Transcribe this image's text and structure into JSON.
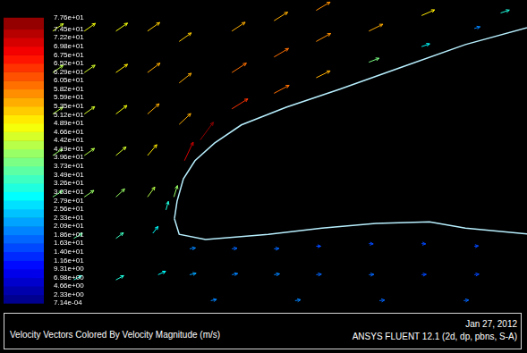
{
  "chart_data": {
    "type": "vector_field",
    "title": "Velocity Vectors Colored By Velocity Magnitude (m/s)",
    "annotations": [
      "Jan 27, 2012",
      "ANSYS FLUENT 12.1 (2d, dp, pbns, S-A)"
    ],
    "xlim": [
      0,
      10
    ],
    "ylim": [
      0,
      6
    ],
    "tick_labels": false,
    "grid": false,
    "colorbar": {
      "range": [
        0.000714,
        77.6
      ],
      "ticks": [
        {
          "value": 77.6,
          "label": "7.76e+01"
        },
        {
          "value": 74.5,
          "label": "7.45e+01"
        },
        {
          "value": 72.2,
          "label": "7.22e+01"
        },
        {
          "value": 69.8,
          "label": "6.98e+01"
        },
        {
          "value": 67.5,
          "label": "6.75e+01"
        },
        {
          "value": 65.2,
          "label": "6.52e+01"
        },
        {
          "value": 62.9,
          "label": "6.29e+01"
        },
        {
          "value": 60.5,
          "label": "6.05e+01"
        },
        {
          "value": 58.2,
          "label": "5.82e+01"
        },
        {
          "value": 55.9,
          "label": "5.59e+01"
        },
        {
          "value": 53.5,
          "label": "5.35e+01"
        },
        {
          "value": 51.2,
          "label": "5.12e+01"
        },
        {
          "value": 48.9,
          "label": "4.89e+01"
        },
        {
          "value": 46.6,
          "label": "4.66e+01"
        },
        {
          "value": 44.2,
          "label": "4.42e+01"
        },
        {
          "value": 41.9,
          "label": "4.19e+01"
        },
        {
          "value": 39.6,
          "label": "3.96e+01"
        },
        {
          "value": 37.3,
          "label": "3.73e+01"
        },
        {
          "value": 34.9,
          "label": "3.49e+01"
        },
        {
          "value": 32.6,
          "label": "3.26e+01"
        },
        {
          "value": 30.3,
          "label": "3.03e+01"
        },
        {
          "value": 27.9,
          "label": "2.79e+01"
        },
        {
          "value": 25.6,
          "label": "2.56e+01"
        },
        {
          "value": 23.3,
          "label": "2.33e+01"
        },
        {
          "value": 20.9,
          "label": "2.09e+01"
        },
        {
          "value": 18.6,
          "label": "1.86e+01"
        },
        {
          "value": 16.3,
          "label": "1.63e+01"
        },
        {
          "value": 14,
          "label": "1.40e+01"
        },
        {
          "value": 11.6,
          "label": "1.16e+01"
        },
        {
          "value": 9.31,
          "label": "9.31e+00"
        },
        {
          "value": 6.98,
          "label": "6.98e+00"
        },
        {
          "value": 4.66,
          "label": "4.66e+00"
        },
        {
          "value": 2.33,
          "label": "2.33e+00"
        },
        {
          "value": 0.000714,
          "label": "7.14e-04"
        }
      ]
    },
    "vectors": [
      [
        1.0,
        5.4,
        37,
        26
      ],
      [
        1.6,
        5.4,
        38,
        27
      ],
      [
        2.2,
        5.4,
        40,
        28
      ],
      [
        2.8,
        5.4,
        42,
        30
      ],
      [
        1.0,
        4.6,
        36,
        25
      ],
      [
        1.6,
        4.6,
        37,
        26
      ],
      [
        2.2,
        4.6,
        40,
        29
      ],
      [
        2.8,
        4.6,
        43,
        33
      ],
      [
        1.0,
        3.8,
        35,
        24
      ],
      [
        1.6,
        3.8,
        36,
        26
      ],
      [
        2.2,
        3.8,
        38,
        30
      ],
      [
        2.8,
        3.8,
        40,
        36
      ],
      [
        1.0,
        3.0,
        34,
        23
      ],
      [
        1.6,
        3.0,
        35,
        25
      ],
      [
        2.2,
        3.0,
        35,
        30
      ],
      [
        2.8,
        3.0,
        32,
        38
      ],
      [
        1.0,
        2.2,
        33,
        21
      ],
      [
        1.6,
        2.2,
        33,
        23
      ],
      [
        2.2,
        2.2,
        30,
        28
      ],
      [
        2.8,
        2.2,
        25,
        35
      ],
      [
        0.6,
        1.4,
        30,
        17
      ],
      [
        1.4,
        1.4,
        30,
        18
      ],
      [
        2.2,
        1.4,
        26,
        20
      ],
      [
        2.9,
        1.5,
        18,
        24
      ],
      [
        0.6,
        0.6,
        28,
        14
      ],
      [
        1.4,
        0.6,
        28,
        15
      ],
      [
        2.2,
        0.6,
        27,
        15
      ],
      [
        3.0,
        0.7,
        26,
        12
      ],
      [
        3.15,
        1.95,
        8,
        30
      ],
      [
        3.3,
        2.2,
        12,
        40
      ],
      [
        3.5,
        2.9,
        30,
        65
      ],
      [
        3.8,
        3.3,
        45,
        62
      ],
      [
        3.4,
        3.6,
        40,
        38
      ],
      [
        3.4,
        4.4,
        42,
        34
      ],
      [
        3.4,
        5.2,
        42,
        30
      ],
      [
        4.4,
        3.9,
        55,
        35
      ],
      [
        4.4,
        4.6,
        50,
        33
      ],
      [
        4.4,
        5.4,
        46,
        31
      ],
      [
        5.2,
        4.2,
        52,
        28
      ],
      [
        5.2,
        4.9,
        50,
        30
      ],
      [
        5.2,
        5.6,
        47,
        30
      ],
      [
        6.0,
        4.5,
        48,
        24
      ],
      [
        6.0,
        5.2,
        50,
        28
      ],
      [
        6.0,
        5.8,
        48,
        29
      ],
      [
        7.0,
        4.8,
        35,
        14
      ],
      [
        7.0,
        5.4,
        48,
        24
      ],
      [
        8.0,
        5.1,
        28,
        10
      ],
      [
        8.0,
        5.7,
        45,
        20
      ],
      [
        9.0,
        5.45,
        20,
        6
      ],
      [
        9.5,
        5.75,
        30,
        10
      ],
      [
        3.6,
        1.2,
        20,
        3
      ],
      [
        4.4,
        1.2,
        18,
        2
      ],
      [
        5.2,
        1.2,
        17,
        1
      ],
      [
        6.0,
        1.25,
        16,
        0
      ],
      [
        7.0,
        1.3,
        15,
        -1
      ],
      [
        8.0,
        1.3,
        14,
        -1
      ],
      [
        9.0,
        1.25,
        14,
        1
      ],
      [
        3.6,
        0.7,
        22,
        5
      ],
      [
        4.4,
        0.7,
        20,
        4
      ],
      [
        5.2,
        0.7,
        19,
        3
      ],
      [
        6.0,
        0.7,
        18,
        2
      ],
      [
        7.0,
        0.7,
        17,
        1
      ],
      [
        8.0,
        0.7,
        16,
        1
      ],
      [
        9.0,
        0.7,
        16,
        2
      ],
      [
        4.0,
        0.2,
        20,
        4
      ],
      [
        5.6,
        0.2,
        19,
        3
      ],
      [
        7.2,
        0.2,
        18,
        2
      ],
      [
        8.8,
        0.2,
        17,
        2
      ]
    ]
  }
}
